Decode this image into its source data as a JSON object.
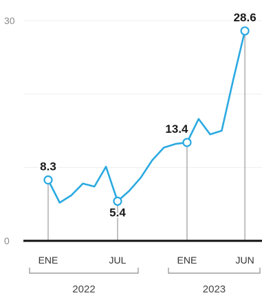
{
  "chart_data": {
    "type": "line",
    "ylim": [
      0,
      30
    ],
    "yticks": [
      0,
      30
    ],
    "ygrid": [
      10,
      20,
      30
    ],
    "grid": true,
    "droplines": true,
    "x": [
      "2022-01",
      "2022-02",
      "2022-03",
      "2022-04",
      "2022-05",
      "2022-06",
      "2022-07",
      "2022-08",
      "2022-09",
      "2022-10",
      "2022-11",
      "2022-12",
      "2023-01",
      "2023-02",
      "2023-03",
      "2023-04",
      "2023-05",
      "2023-06"
    ],
    "series": [
      {
        "values": [
          8.3,
          5.2,
          6.2,
          7.8,
          7.4,
          10.1,
          5.4,
          6.8,
          8.6,
          11.0,
          12.7,
          13.2,
          13.4,
          16.6,
          14.5,
          15.0,
          22.0,
          28.6
        ],
        "color": "#2aa9e1"
      }
    ],
    "labeled_points": [
      {
        "x": "2022-01",
        "label": "8.3",
        "placement": "above"
      },
      {
        "x": "2022-07",
        "label": "5.4",
        "placement": "below"
      },
      {
        "x": "2023-01",
        "label": "13.4",
        "placement": "above-left"
      },
      {
        "x": "2023-06",
        "label": "28.6",
        "placement": "above"
      }
    ],
    "xticks": [
      {
        "x": "2022-01",
        "label": "ENE"
      },
      {
        "x": "2022-07",
        "label": "JUL"
      },
      {
        "x": "2023-01",
        "label": "ENE"
      },
      {
        "x": "2023-06",
        "label": "JUN"
      }
    ],
    "year_groups": [
      {
        "label": "2022",
        "ticks": [
          "2022-01",
          "2022-07"
        ]
      },
      {
        "label": "2023",
        "ticks": [
          "2023-01",
          "2023-06"
        ]
      }
    ],
    "colors": {
      "axis": "#111111",
      "dropline": "#a0a0a0",
      "text": "#1a1a1a"
    }
  }
}
